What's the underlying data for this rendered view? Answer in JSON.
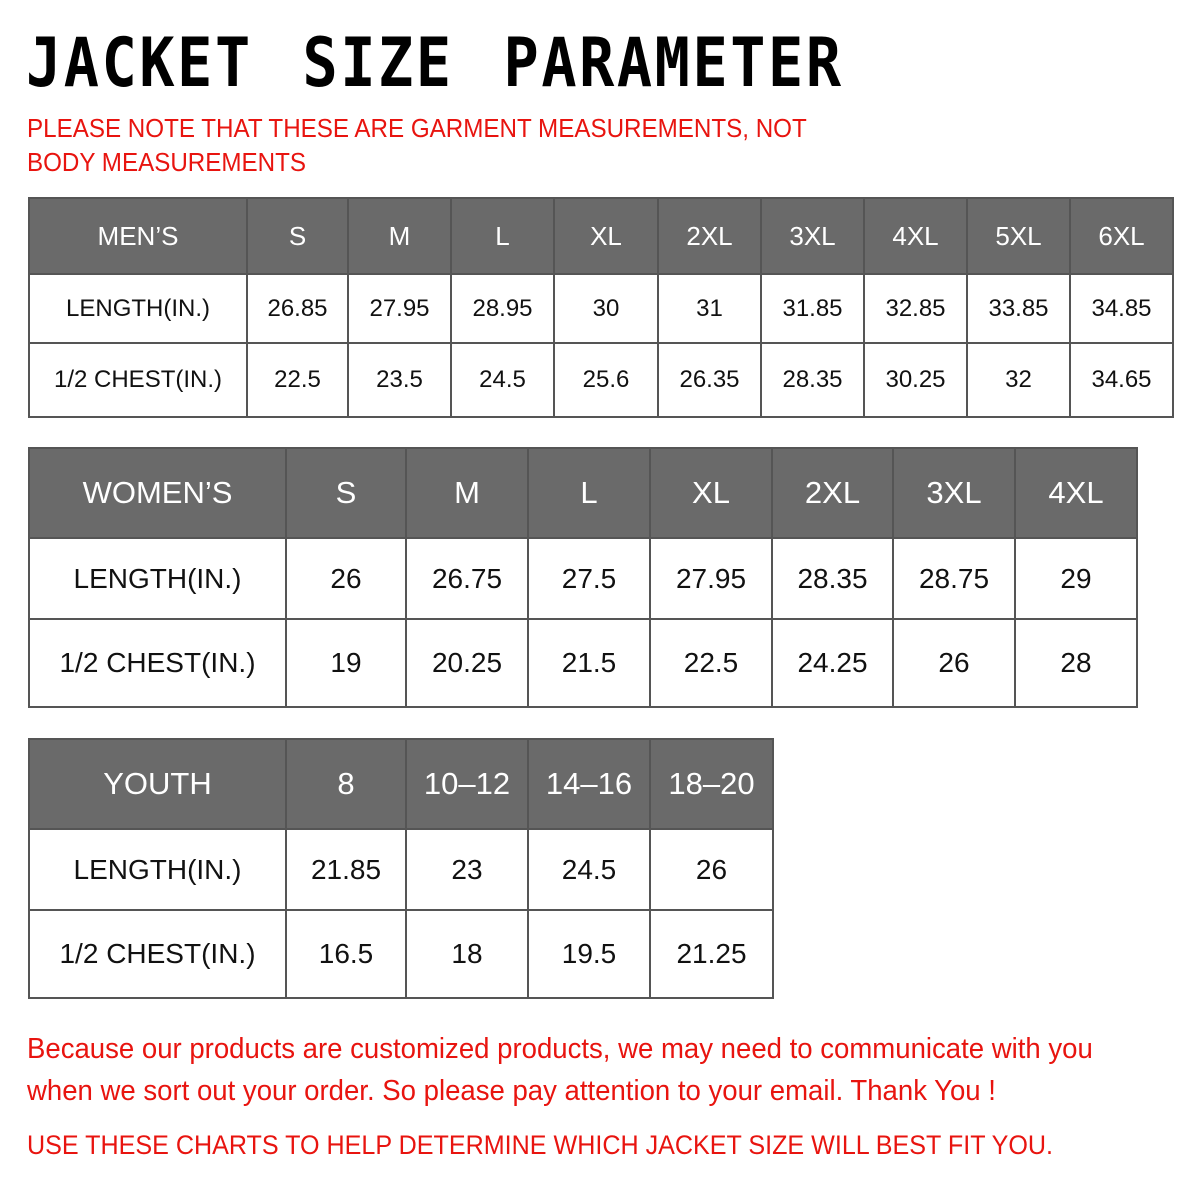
{
  "title": "JACKET SIZE PARAMETER",
  "note": "PLEASE NOTE THAT THESE ARE GARMENT MEASUREMENTS, NOT BODY MEASUREMENTS",
  "tables": [
    {
      "id": "men",
      "header": [
        "MEN’S",
        "S",
        "M",
        "L",
        "XL",
        "2XL",
        "3XL",
        "4XL",
        "5XL",
        "6XL"
      ],
      "rows": [
        [
          "LENGTH(IN.)",
          "26.85",
          "27.95",
          "28.95",
          "30",
          "31",
          "31.85",
          "32.85",
          "33.85",
          "34.85"
        ],
        [
          "1/2 CHEST(IN.)",
          "22.5",
          "23.5",
          "24.5",
          "25.6",
          "26.35",
          "28.35",
          "30.25",
          "32",
          "34.65"
        ]
      ]
    },
    {
      "id": "women",
      "header": [
        "WOMEN’S",
        "S",
        "M",
        "L",
        "XL",
        "2XL",
        "3XL",
        "4XL"
      ],
      "rows": [
        [
          "LENGTH(IN.)",
          "26",
          "26.75",
          "27.5",
          "27.95",
          "28.35",
          "28.75",
          "29"
        ],
        [
          "1/2 CHEST(IN.)",
          "19",
          "20.25",
          "21.5",
          "22.5",
          "24.25",
          "26",
          "28"
        ]
      ]
    },
    {
      "id": "youth",
      "header": [
        "YOUTH",
        "8",
        "10–12",
        "14–16",
        "18–20"
      ],
      "rows": [
        [
          "LENGTH(IN.)",
          "21.85",
          "23",
          "24.5",
          "26"
        ],
        [
          "1/2 CHEST(IN.)",
          "16.5",
          "18",
          "19.5",
          "21.25"
        ]
      ]
    }
  ],
  "footer": {
    "message": "Because our products are customized products, we may need to communicate with you when we sort out your order. So please pay attention to your email. Thank You !",
    "advice": "USE THESE CHARTS TO HELP DETERMINE WHICH JACKET SIZE WILL BEST FIT YOU."
  },
  "colors": {
    "header_bg": "#6a6a6a",
    "accent_red": "#e8140f"
  }
}
